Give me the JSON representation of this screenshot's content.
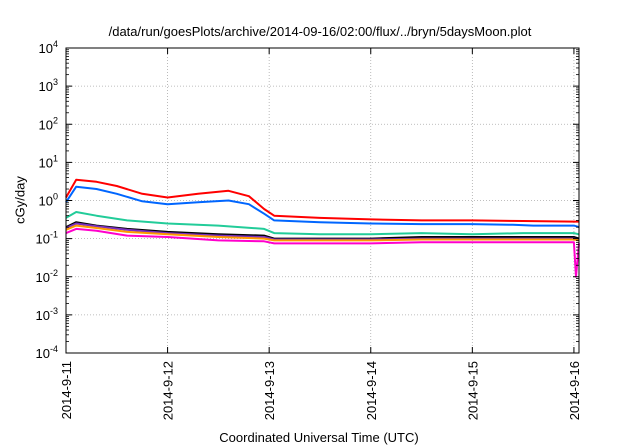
{
  "chart_data": {
    "type": "line",
    "title": "/data/run/goesPlots/archive/2014-09-16/02:00/flux/../bryn/5daysMoon.plot",
    "xlabel": "Coordinated Universal Time (UTC)",
    "ylabel": "cGy/day",
    "x_tick_labels": [
      "2014-9-11",
      "2014-9-12",
      "2014-9-13",
      "2014-9-14",
      "2014-9-15",
      "2014-9-16"
    ],
    "x_range_days": [
      0,
      5.05
    ],
    "y_scale": "log",
    "ylim": [
      0.0001,
      10000
    ],
    "y_tick_labels": [
      {
        "base": "10",
        "exp": "-4"
      },
      {
        "base": "10",
        "exp": "-3"
      },
      {
        "base": "10",
        "exp": "-2"
      },
      {
        "base": "10",
        "exp": "-1"
      },
      {
        "base": "10",
        "exp": "0"
      },
      {
        "base": "10",
        "exp": "1"
      },
      {
        "base": "10",
        "exp": "2"
      },
      {
        "base": "10",
        "exp": "3"
      },
      {
        "base": "10",
        "exp": "4"
      }
    ],
    "grid": true,
    "series": [
      {
        "color": "#ff0000",
        "points": [
          [
            0,
            1.2
          ],
          [
            0.1,
            3.5
          ],
          [
            0.3,
            3.1
          ],
          [
            0.5,
            2.4
          ],
          [
            0.75,
            1.5
          ],
          [
            1,
            1.2
          ],
          [
            1.3,
            1.5
          ],
          [
            1.6,
            1.8
          ],
          [
            1.8,
            1.3
          ],
          [
            1.95,
            0.6
          ],
          [
            2.05,
            0.4
          ],
          [
            2.5,
            0.35
          ],
          [
            3,
            0.32
          ],
          [
            3.5,
            0.3
          ],
          [
            4,
            0.3
          ],
          [
            4.5,
            0.29
          ],
          [
            5.0,
            0.28
          ],
          [
            5.05,
            0.28
          ]
        ]
      },
      {
        "color": "#0066ff",
        "points": [
          [
            0,
            0.9
          ],
          [
            0.1,
            2.3
          ],
          [
            0.3,
            2.0
          ],
          [
            0.5,
            1.5
          ],
          [
            0.75,
            0.95
          ],
          [
            1,
            0.8
          ],
          [
            1.3,
            0.9
          ],
          [
            1.6,
            1.0
          ],
          [
            1.8,
            0.8
          ],
          [
            1.95,
            0.45
          ],
          [
            2.05,
            0.3
          ],
          [
            2.5,
            0.27
          ],
          [
            3,
            0.25
          ],
          [
            3.5,
            0.24
          ],
          [
            4,
            0.24
          ],
          [
            4.4,
            0.23
          ],
          [
            4.6,
            0.22
          ],
          [
            5.0,
            0.22
          ],
          [
            5.05,
            0.2
          ]
        ]
      },
      {
        "color": "#22cc99",
        "points": [
          [
            0,
            0.35
          ],
          [
            0.1,
            0.5
          ],
          [
            0.3,
            0.4
          ],
          [
            0.6,
            0.3
          ],
          [
            1,
            0.25
          ],
          [
            1.5,
            0.22
          ],
          [
            1.95,
            0.18
          ],
          [
            2.05,
            0.14
          ],
          [
            2.5,
            0.13
          ],
          [
            3,
            0.13
          ],
          [
            3.5,
            0.14
          ],
          [
            4,
            0.13
          ],
          [
            4.5,
            0.14
          ],
          [
            5.0,
            0.14
          ],
          [
            5.05,
            0.13
          ]
        ]
      },
      {
        "color": "#000000",
        "points": [
          [
            0,
            0.2
          ],
          [
            0.1,
            0.27
          ],
          [
            0.3,
            0.22
          ],
          [
            0.6,
            0.18
          ],
          [
            1,
            0.15
          ],
          [
            1.5,
            0.13
          ],
          [
            1.95,
            0.12
          ],
          [
            2.05,
            0.1
          ],
          [
            2.5,
            0.1
          ],
          [
            3,
            0.1
          ],
          [
            3.5,
            0.11
          ],
          [
            4,
            0.11
          ],
          [
            4.5,
            0.11
          ],
          [
            5.0,
            0.11
          ],
          [
            5.05,
            0.1
          ]
        ]
      },
      {
        "color": "#7a2fbf",
        "points": [
          [
            0,
            0.19
          ],
          [
            0.1,
            0.25
          ],
          [
            0.3,
            0.21
          ],
          [
            0.6,
            0.17
          ],
          [
            1,
            0.14
          ],
          [
            1.5,
            0.12
          ],
          [
            1.95,
            0.11
          ],
          [
            2.05,
            0.095
          ],
          [
            2.5,
            0.095
          ],
          [
            3,
            0.095
          ],
          [
            3.5,
            0.1
          ],
          [
            4,
            0.1
          ],
          [
            4.5,
            0.1
          ],
          [
            5.0,
            0.1
          ],
          [
            5.05,
            0.095
          ]
        ]
      },
      {
        "color": "#ff9900",
        "points": [
          [
            0,
            0.17
          ],
          [
            0.1,
            0.22
          ],
          [
            0.3,
            0.19
          ],
          [
            0.6,
            0.15
          ],
          [
            1,
            0.13
          ],
          [
            1.5,
            0.11
          ],
          [
            1.95,
            0.1
          ],
          [
            2.05,
            0.09
          ],
          [
            2.5,
            0.09
          ],
          [
            3,
            0.09
          ],
          [
            3.5,
            0.095
          ],
          [
            4,
            0.095
          ],
          [
            4.5,
            0.095
          ],
          [
            5.0,
            0.095
          ],
          [
            5.05,
            0.09
          ]
        ]
      },
      {
        "color": "#ff00cc",
        "points": [
          [
            0,
            0.14
          ],
          [
            0.1,
            0.18
          ],
          [
            0.3,
            0.16
          ],
          [
            0.6,
            0.12
          ],
          [
            1,
            0.11
          ],
          [
            1.5,
            0.09
          ],
          [
            1.95,
            0.085
          ],
          [
            2.05,
            0.075
          ],
          [
            2.5,
            0.075
          ],
          [
            3,
            0.075
          ],
          [
            3.5,
            0.08
          ],
          [
            4,
            0.08
          ],
          [
            4.5,
            0.08
          ],
          [
            5.0,
            0.08
          ],
          [
            5.02,
            0.01
          ],
          [
            5.05,
            0.075
          ]
        ]
      }
    ]
  }
}
